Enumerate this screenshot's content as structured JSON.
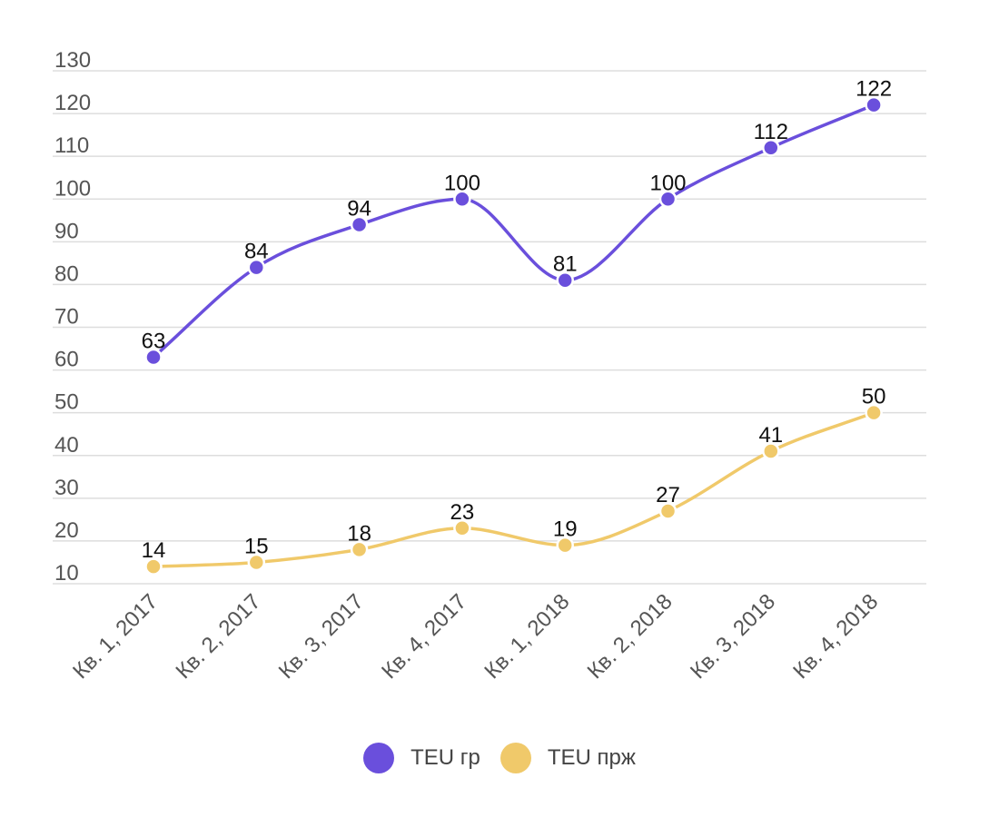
{
  "chart_data": {
    "type": "line",
    "title": "",
    "xlabel": "",
    "ylabel": "",
    "categories": [
      "Кв. 1, 2017",
      "Кв. 2, 2017",
      "Кв. 3, 2017",
      "Кв. 4, 2017",
      "Кв. 1, 2018",
      "Кв. 2, 2018",
      "Кв. 3, 2018",
      "Кв. 4, 2018"
    ],
    "series": [
      {
        "name": "TEU гр",
        "color": "#6a4fdc",
        "values": [
          63,
          84,
          94,
          100,
          81,
          100,
          112,
          122
        ]
      },
      {
        "name": "TEU прж",
        "color": "#f0c96a",
        "values": [
          14,
          15,
          18,
          23,
          19,
          27,
          41,
          50
        ]
      }
    ],
    "yticks": [
      10,
      20,
      30,
      40,
      50,
      60,
      70,
      80,
      90,
      100,
      110,
      120,
      130
    ],
    "ylim": [
      10,
      130
    ],
    "smooth": true,
    "data_labels": true,
    "grid": true,
    "legend": "bottom-center"
  }
}
